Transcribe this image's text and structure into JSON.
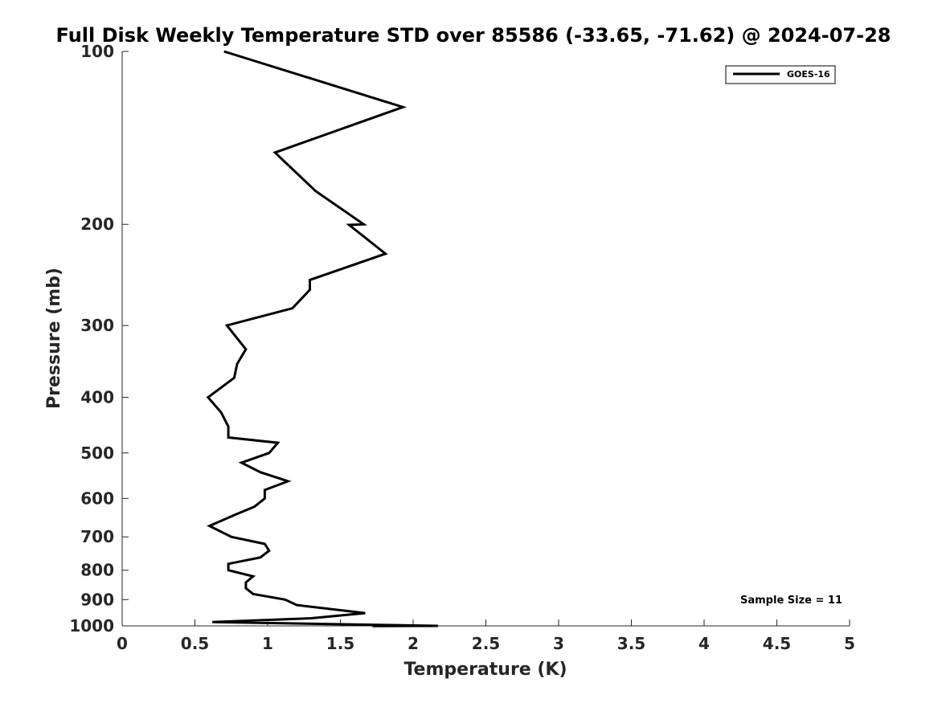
{
  "chart_data": {
    "type": "line",
    "title": "Full Disk Weekly Temperature STD over 85586 (-33.65, -71.62) @ 2024-07-28",
    "xlabel": "Temperature (K)",
    "ylabel": "Pressure (mb)",
    "xlim": [
      0,
      5
    ],
    "ylim": [
      100,
      1000
    ],
    "y_scale": "log",
    "y_reversed": true,
    "grid": false,
    "legend_position": "top-right",
    "x_ticks": [
      "0",
      "0.5",
      "1",
      "1.5",
      "2",
      "2.5",
      "3",
      "3.5",
      "4",
      "4.5",
      "5"
    ],
    "y_ticks": [
      "100",
      "200",
      "300",
      "400",
      "500",
      "600",
      "700",
      "800",
      "900",
      "1000"
    ],
    "series": [
      {
        "name": "GOES-16",
        "color": "#000000",
        "points": [
          [
            0.7,
            100
          ],
          [
            1.93,
            125
          ],
          [
            1.05,
            150
          ],
          [
            1.33,
            175
          ],
          [
            1.66,
            200
          ],
          [
            1.56,
            200.5
          ],
          [
            1.81,
            225
          ],
          [
            1.29,
            250
          ],
          [
            1.29,
            260
          ],
          [
            1.17,
            280
          ],
          [
            0.72,
            300
          ],
          [
            0.85,
            330
          ],
          [
            0.79,
            350
          ],
          [
            0.77,
            370
          ],
          [
            0.59,
            400
          ],
          [
            0.68,
            425
          ],
          [
            0.73,
            450
          ],
          [
            0.73,
            470
          ],
          [
            1.07,
            480
          ],
          [
            1.01,
            500
          ],
          [
            0.82,
            520
          ],
          [
            0.95,
            540
          ],
          [
            1.14,
            560
          ],
          [
            0.98,
            580
          ],
          [
            0.98,
            600
          ],
          [
            0.91,
            620
          ],
          [
            0.78,
            640
          ],
          [
            0.6,
            670
          ],
          [
            0.75,
            700
          ],
          [
            0.98,
            720
          ],
          [
            1.01,
            740
          ],
          [
            0.95,
            760
          ],
          [
            0.73,
            780
          ],
          [
            0.73,
            800
          ],
          [
            0.9,
            820
          ],
          [
            0.85,
            840
          ],
          [
            0.85,
            860
          ],
          [
            0.9,
            880
          ],
          [
            1.12,
            900
          ],
          [
            1.2,
            920
          ],
          [
            1.67,
            950
          ],
          [
            1.3,
            970
          ],
          [
            0.62,
            985
          ],
          [
            2.17,
            1000
          ],
          [
            1.72,
            1001
          ]
        ]
      }
    ],
    "annotations": [
      "Sample Size = 11"
    ]
  }
}
